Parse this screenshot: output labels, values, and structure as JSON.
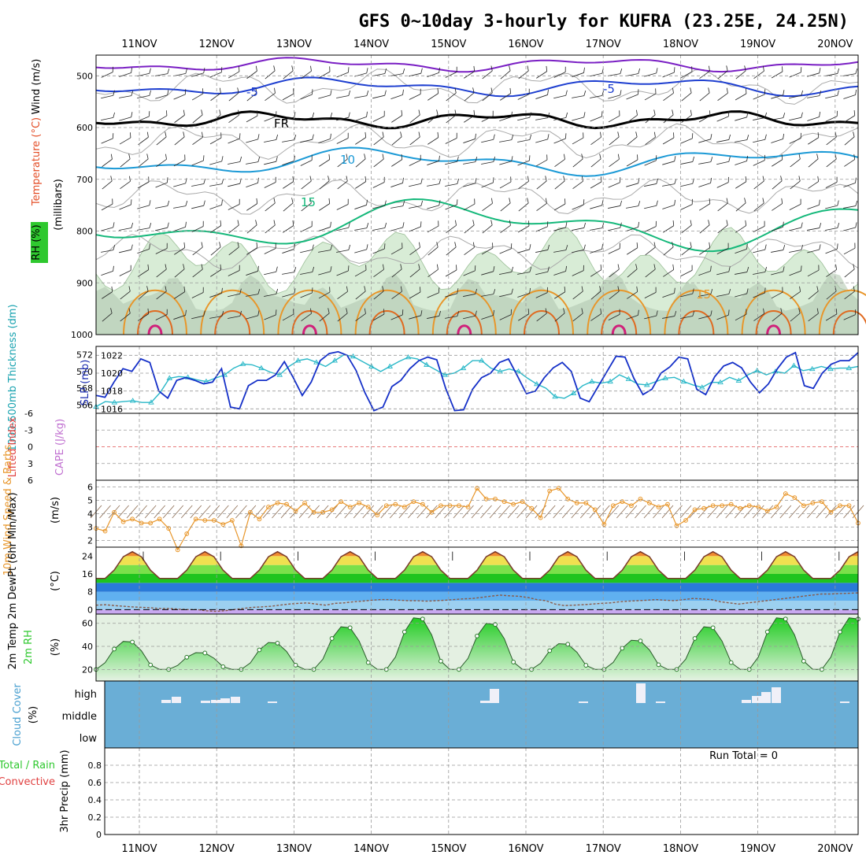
{
  "title": "GFS 0~10day 3-hourly for KUFRA (23.25E, 24.25N)",
  "dates": [
    "11NOV",
    "12NOV",
    "13NOV",
    "14NOV",
    "15NOV",
    "16NOV",
    "17NOV",
    "18NOV",
    "19NOV",
    "20NOV"
  ],
  "run_total": "Run Total = 0",
  "colors": {
    "purple": "#7a1fc4",
    "blue_dark": "#1e3fd0",
    "blue_light": "#1c9ad6",
    "green": "#14b87a",
    "orange": "#e8962a",
    "magenta": "#d0207a",
    "cyan": "#2ab8c8",
    "slp_blue": "#1530c8",
    "cloud_blue": "#6aaed6",
    "rh_green": "#2ec82e"
  },
  "panels": {
    "upper_air": {
      "label_wind": "Wind (m/s)",
      "label_temp": "Temperature (°C)",
      "label_rh": "RH (%)",
      "label_pressure": "(millibars)",
      "yticks": [
        "500",
        "600",
        "700",
        "800",
        "900",
        "1000"
      ],
      "contour_labels": [
        "-5",
        "FR",
        "-5",
        "10",
        "15"
      ]
    },
    "slp": {
      "label_thk": "1000-500mb Thickness (dm)",
      "label_slp": "SLP (mb)",
      "yticks_left": [
        "572",
        "570",
        "568",
        "566"
      ],
      "yticks_right": [
        "1022",
        "1020",
        "1018",
        "1016"
      ]
    },
    "li": {
      "label_li": "Lifted Index",
      "label_cape": "CAPE (J/kg)",
      "yticks": [
        "-6",
        "-3",
        "0",
        "3",
        "6"
      ]
    },
    "wind10": {
      "label": "10m Wind Speed & Barbs",
      "unit": "(m/s)",
      "yticks": [
        "6",
        "5",
        "4",
        "3",
        "2"
      ]
    },
    "temp": {
      "label": "2m Temp 2m DewPt (6hr Min/Max)",
      "unit": "(°C)",
      "yticks": [
        "24",
        "16",
        "8",
        "0"
      ]
    },
    "rh": {
      "label": "2m RH",
      "unit": "(%)",
      "yticks": [
        "60",
        "40",
        "20"
      ]
    },
    "cloud": {
      "label": "Cloud Cover",
      "unit": "(%)",
      "levels": [
        "high",
        "middle",
        "low"
      ]
    },
    "precip": {
      "label_total": "Total / Rain",
      "label_conv": "Convective",
      "label_unit": "3hr Precip (mm)",
      "yticks": [
        "0.8",
        "0.6",
        "0.4",
        "0.2",
        "0"
      ]
    }
  },
  "chart_data": [
    {
      "type": "line",
      "title": "1000-500mb Thickness (dm) and SLP (mb)",
      "x_unit": "3-hourly steps from start",
      "series": [
        {
          "name": "SLP (mb)",
          "values": [
            1017.5,
            1017.3,
            1019,
            1020.5,
            1020.2,
            1021.6,
            1021.2,
            1018,
            1017.2,
            1019.2,
            1019.5,
            1019.2,
            1018.8,
            1019,
            1020.5,
            1016.2,
            1016,
            1018.6,
            1019.2,
            1019.2,
            1019.8,
            1021.3,
            1019.5,
            1017.5,
            1019,
            1021.4,
            1022.2,
            1022.4,
            1022,
            1020.3,
            1017.8,
            1015.8,
            1016.2,
            1018.5,
            1019.2,
            1020.5,
            1021.4,
            1021.8,
            1021.5,
            1018.3,
            1015.8,
            1015.9,
            1018.2,
            1019.5,
            1020,
            1021.2,
            1021.6,
            1019.7,
            1017.7,
            1018,
            1019.5,
            1020.6,
            1021.2,
            1020.2,
            1017.2,
            1016.8,
            1018.5,
            1020.2,
            1021.9,
            1021.8,
            1019.4,
            1017.6,
            1018.2,
            1020,
            1020.7,
            1021.8,
            1021.6,
            1018.2,
            1017.6,
            1019.6,
            1020.8,
            1021.2,
            1020.6,
            1019,
            1017.8,
            1018.8,
            1020.5,
            1021.8,
            1022.3,
            1018.6,
            1018.3,
            1020,
            1021,
            1021.4,
            1021.4,
            1022.3
          ]
        },
        {
          "name": "Thickness (dm)",
          "values": [
            565.8,
            566.4,
            566.3,
            566.4,
            566.5,
            566.3,
            566.3,
            567.5,
            569.2,
            569.4,
            569.3,
            569,
            568.8,
            569.2,
            569.6,
            570.4,
            570.9,
            570.8,
            570.4,
            569.9,
            569.6,
            570.6,
            571.3,
            571.5,
            571.1,
            570.6,
            571.3,
            572,
            571.8,
            571.2,
            570.6,
            570,
            570.6,
            571.2,
            571.7,
            571.5,
            570.8,
            570.2,
            569.6,
            569.8,
            570.4,
            571.3,
            571.3,
            570.4,
            570,
            570.3,
            570,
            569.2,
            568.5,
            568,
            567,
            566.8,
            567.4,
            568.3,
            568.8,
            568.6,
            568.8,
            569.6,
            569.1,
            568.5,
            568.4,
            568.8,
            569.2,
            569.3,
            568.8,
            568.4,
            568.1,
            568.7,
            568.7,
            569.3,
            568.9,
            569.6,
            570.1,
            569.6,
            570,
            569.8,
            570.7,
            570.1,
            570.3,
            570.6,
            570.3,
            570.4,
            570.4,
            570.6
          ]
        }
      ],
      "ylim_left": [
        565,
        573
      ],
      "ylim_right": [
        1015.5,
        1023
      ]
    },
    {
      "type": "line",
      "title": "10m Wind Speed (m/s)",
      "series": [
        {
          "name": "10m Wind Speed",
          "values": [
            2.9,
            2.7,
            4.1,
            3.4,
            3.6,
            3.3,
            3.3,
            3.6,
            2.9,
            1.3,
            2.5,
            3.6,
            3.5,
            3.5,
            3.2,
            3.5,
            1.6,
            4.1,
            3.6,
            4.5,
            4.8,
            4.7,
            4.2,
            4.8,
            4.1,
            4.1,
            4.3,
            4.9,
            4.5,
            4.8,
            4.5,
            3.9,
            4.6,
            4.7,
            4.5,
            4.9,
            4.7,
            4.1,
            4.6,
            4.6,
            4.6,
            4.5,
            5.9,
            5.1,
            5.1,
            4.9,
            4.7,
            4.9,
            4.4,
            3.7,
            5.7,
            5.9,
            5.1,
            4.8,
            4.8,
            4.3,
            3.2,
            4.6,
            4.9,
            4.6,
            5.1,
            4.8,
            4.5,
            4.7,
            3.1,
            3.5,
            4.3,
            4.4,
            4.6,
            4.6,
            4.7,
            4.4,
            4.6,
            4.5,
            4.2,
            4.5,
            5.5,
            5.2,
            4.6,
            4.8,
            4.9,
            4.1,
            4.6,
            4.6,
            3.3
          ]
        }
      ],
      "ylim": [
        1.5,
        6.5
      ]
    },
    {
      "type": "area",
      "title": "2m Temp / 2m DewPt (°C)",
      "series": [
        {
          "name": "2m Temp",
          "daily_min": 14,
          "daily_max": 26
        },
        {
          "name": "2m DewPt",
          "values": [
            2,
            2.2,
            1.8,
            1.5,
            1.2,
            1,
            0.8,
            0.5,
            0.5,
            0.2,
            0,
            0,
            -0.5,
            -0.8,
            -0.5,
            0,
            0.5,
            1,
            1.2,
            1.5,
            2,
            2.5,
            2.8,
            3,
            2.5,
            2,
            2.8,
            3,
            3.5,
            3.8,
            4.2,
            4.5,
            4.5,
            4.2,
            4,
            4,
            3.8,
            4,
            4.2,
            4.5,
            4.8,
            5,
            5.5,
            6,
            6.5,
            6.2,
            6,
            5.5,
            4.5,
            4,
            2.5,
            1.8,
            2,
            2.2,
            2.5,
            2.8,
            3,
            3.5,
            3.8,
            4,
            4.2,
            4.5,
            4.2,
            4,
            4.5,
            5,
            4.8,
            4.5,
            3.5,
            3,
            2.5,
            3,
            3.5,
            4,
            4.5,
            5,
            5.5,
            6,
            6.5,
            7,
            7,
            7.2,
            7.3,
            7.5
          ]
        }
      ],
      "ylim": [
        -2,
        28
      ]
    },
    {
      "type": "area",
      "title": "2m RH (%)",
      "series": [
        {
          "name": "2m RH",
          "daily_peaks": [
            45,
            35,
            44,
            58,
            66,
            61,
            43,
            46,
            58,
            66
          ]
        }
      ],
      "ylim": [
        10,
        68
      ]
    },
    {
      "type": "bar",
      "title": "Cloud Cover (%)",
      "series": [
        {
          "name": "high",
          "note": "small sporadic high-level cloud"
        }
      ]
    },
    {
      "type": "bar",
      "title": "3hr Precip (mm)",
      "series": [
        {
          "name": "Total / Rain",
          "values": []
        }
      ],
      "ylim": [
        0,
        1
      ]
    }
  ]
}
